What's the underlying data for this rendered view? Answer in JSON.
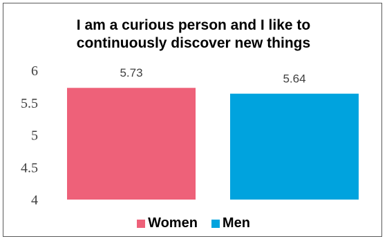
{
  "chart_data": {
    "type": "bar",
    "title_lines": [
      "I am a curious person and I like to",
      "continuously discover new things"
    ],
    "categories": [
      "Women",
      "Men"
    ],
    "values": [
      5.73,
      5.64
    ],
    "value_labels": [
      "5.73",
      "5.64"
    ],
    "colors": [
      "#EE6179",
      "#00A3DE"
    ],
    "ylim": [
      4,
      6
    ],
    "yticks": [
      "4",
      "4.5",
      "5",
      "5.5",
      "6"
    ],
    "grid": false,
    "legend": {
      "position": "bottom",
      "items": [
        "Women",
        "Men"
      ]
    }
  }
}
